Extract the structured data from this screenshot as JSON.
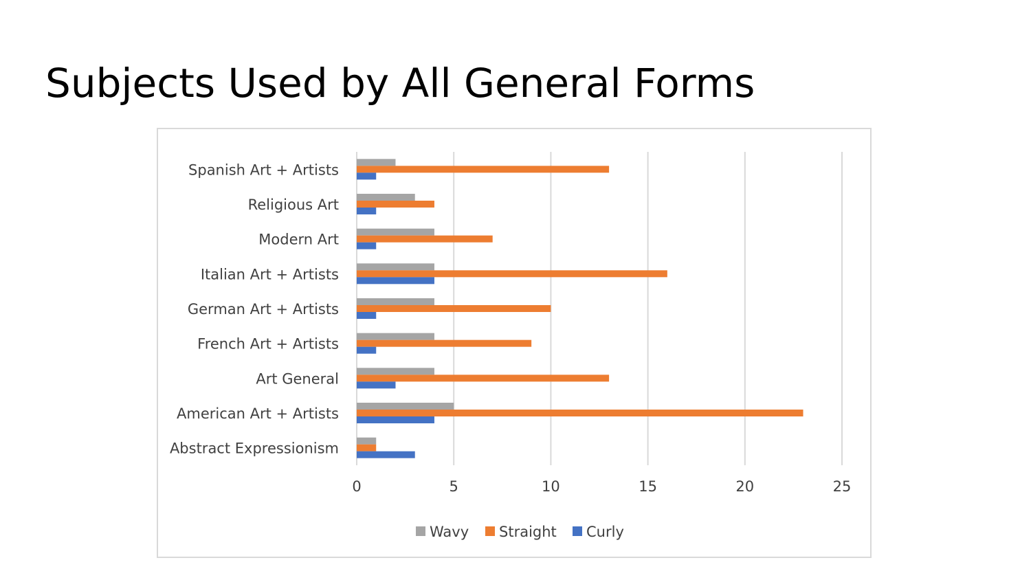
{
  "slide": {
    "title": "Subjects Used by All General Forms"
  },
  "chart_data": {
    "type": "bar",
    "orientation": "horizontal",
    "categories": [
      "Spanish Art + Artists",
      "Religious Art",
      "Modern Art",
      "Italian Art + Artists",
      "German Art + Artists",
      "French Art + Artists",
      "Art General",
      "American Art + Artists",
      "Abstract Expressionism"
    ],
    "series": [
      {
        "name": "Wavy",
        "color": "#a5a5a5",
        "values": [
          2,
          3,
          4,
          4,
          4,
          4,
          4,
          5,
          1
        ]
      },
      {
        "name": "Straight",
        "color": "#ed7d31",
        "values": [
          13,
          4,
          7,
          16,
          10,
          9,
          13,
          23,
          1
        ]
      },
      {
        "name": "Curly",
        "color": "#4472c4",
        "values": [
          1,
          1,
          1,
          4,
          1,
          1,
          2,
          4,
          3
        ]
      }
    ],
    "xlim": [
      0,
      25
    ],
    "xticks": [
      "0",
      "5",
      "10",
      "15",
      "20",
      "25"
    ],
    "gridlines": true,
    "legend_position": "bottom",
    "xlabel": "",
    "ylabel": ""
  }
}
